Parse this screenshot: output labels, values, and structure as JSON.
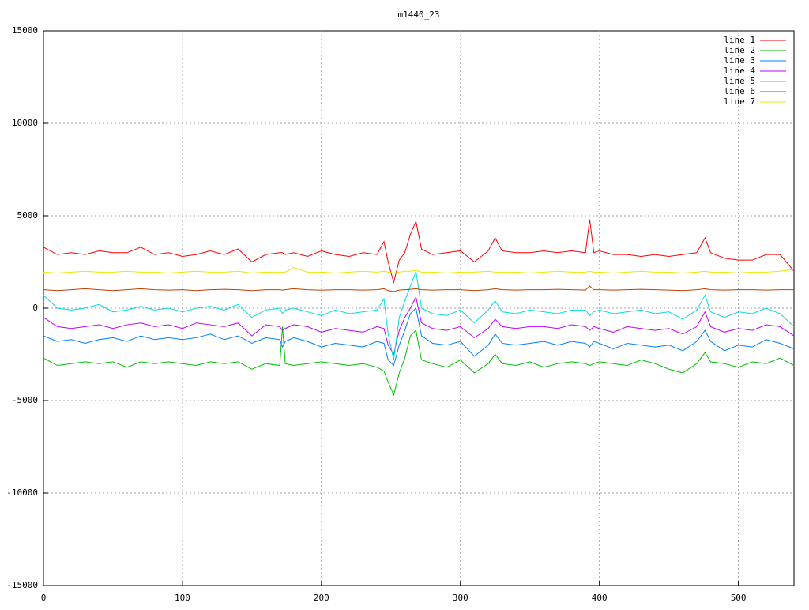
{
  "chart_data": {
    "type": "line",
    "title": "m1440_23",
    "x": [
      0,
      10,
      20,
      30,
      40,
      50,
      60,
      70,
      80,
      90,
      100,
      110,
      120,
      130,
      140,
      150,
      160,
      170,
      172,
      174,
      180,
      190,
      200,
      210,
      220,
      230,
      240,
      245,
      248,
      252,
      256,
      260,
      264,
      268,
      272,
      280,
      290,
      300,
      310,
      320,
      325,
      330,
      340,
      350,
      360,
      370,
      380,
      390,
      393,
      396,
      400,
      410,
      420,
      430,
      440,
      450,
      460,
      470,
      476,
      480,
      490,
      500,
      510,
      520,
      530,
      540
    ],
    "xlim": [
      0,
      540
    ],
    "xticks": [
      0,
      100,
      200,
      300,
      400,
      500
    ],
    "ylim": [
      -15000,
      15000
    ],
    "yticks": [
      -15000,
      -10000,
      -5000,
      0,
      5000,
      10000,
      15000
    ],
    "grid": true,
    "legend": "top-right",
    "series": [
      {
        "name": "line 1",
        "color": "#ff0000",
        "values": [
          3300,
          2900,
          3000,
          2900,
          3100,
          3000,
          3000,
          3300,
          2900,
          3000,
          2800,
          2900,
          3100,
          2900,
          3200,
          2500,
          2900,
          3000,
          3000,
          2900,
          3000,
          2800,
          3100,
          2900,
          2800,
          3000,
          2900,
          3600,
          2500,
          1400,
          2600,
          3000,
          4000,
          4700,
          3200,
          2900,
          3000,
          3100,
          2500,
          3100,
          3800,
          3100,
          3000,
          3000,
          3100,
          3000,
          3100,
          3000,
          4800,
          3000,
          3100,
          2900,
          2900,
          2800,
          2900,
          2800,
          2900,
          3000,
          3800,
          3000,
          2700,
          2600,
          2600,
          2900,
          2900,
          2000
        ]
      },
      {
        "name": "line 2",
        "color": "#00c000",
        "values": [
          -2700,
          -3100,
          -3000,
          -2900,
          -3000,
          -2900,
          -3200,
          -2900,
          -3000,
          -2900,
          -3000,
          -3100,
          -2900,
          -3000,
          -2900,
          -3300,
          -3000,
          -3100,
          -1000,
          -3000,
          -3100,
          -3000,
          -2900,
          -3000,
          -3100,
          -3000,
          -3200,
          -3400,
          -4000,
          -4700,
          -3500,
          -2700,
          -1500,
          -1200,
          -2800,
          -3000,
          -3200,
          -2800,
          -3500,
          -3000,
          -2500,
          -3000,
          -3100,
          -2900,
          -3200,
          -3000,
          -2900,
          -3000,
          -3100,
          -3000,
          -2900,
          -3000,
          -3100,
          -2800,
          -3000,
          -3300,
          -3500,
          -3000,
          -2400,
          -2900,
          -3000,
          -3200,
          -2900,
          -3000,
          -2700,
          -3100
        ]
      },
      {
        "name": "line 3",
        "color": "#0080ff",
        "values": [
          -1500,
          -1800,
          -1700,
          -1900,
          -1700,
          -1600,
          -1800,
          -1500,
          -1700,
          -1600,
          -1700,
          -1600,
          -1400,
          -1700,
          -1500,
          -1900,
          -1600,
          -1700,
          -2100,
          -1800,
          -1600,
          -1800,
          -2100,
          -1900,
          -2000,
          -2100,
          -1800,
          -1900,
          -2800,
          -3100,
          -2000,
          -1200,
          -300,
          0,
          -1500,
          -1900,
          -2000,
          -1800,
          -2600,
          -2000,
          -1400,
          -1900,
          -2000,
          -1900,
          -1800,
          -2000,
          -1800,
          -1900,
          -2100,
          -1800,
          -1900,
          -2200,
          -1900,
          -2000,
          -2100,
          -2000,
          -2300,
          -1800,
          -1200,
          -1800,
          -2300,
          -2000,
          -2100,
          -1700,
          -1900,
          -2200
        ]
      },
      {
        "name": "line 4",
        "color": "#c000ff",
        "values": [
          -500,
          -1000,
          -1100,
          -1000,
          -900,
          -1100,
          -900,
          -800,
          -1000,
          -900,
          -1100,
          -800,
          -900,
          -1000,
          -800,
          -1500,
          -900,
          -1000,
          -1200,
          -1100,
          -900,
          -1000,
          -1300,
          -1100,
          -1200,
          -1300,
          -1000,
          -1100,
          -2000,
          -2500,
          -1200,
          -500,
          0,
          600,
          -800,
          -1100,
          -1200,
          -1000,
          -1600,
          -1100,
          -600,
          -1000,
          -1100,
          -1000,
          -1000,
          -1100,
          -900,
          -1000,
          -1200,
          -1000,
          -1100,
          -1300,
          -1000,
          -1100,
          -1200,
          -1100,
          -1400,
          -1000,
          -200,
          -1000,
          -1300,
          -1100,
          -1200,
          -900,
          -1000,
          -1500
        ]
      },
      {
        "name": "line 5",
        "color": "#00dddd",
        "values": [
          700,
          0,
          -100,
          0,
          200,
          -200,
          -100,
          100,
          -100,
          0,
          -200,
          0,
          100,
          -100,
          200,
          -500,
          -100,
          0,
          -300,
          -100,
          0,
          -200,
          -400,
          -100,
          -300,
          -200,
          -100,
          500,
          -1400,
          -2800,
          -500,
          400,
          1200,
          2000,
          0,
          -300,
          -400,
          -100,
          -800,
          -100,
          400,
          -200,
          -300,
          -100,
          -200,
          -300,
          -100,
          -100,
          -400,
          -200,
          -100,
          -300,
          -200,
          -100,
          -300,
          -200,
          -600,
          -100,
          700,
          -200,
          -500,
          -200,
          -300,
          0,
          -300,
          -1000
        ]
      },
      {
        "name": "line 6",
        "color": "#c04000",
        "values": [
          1000,
          950,
          1000,
          1050,
          1000,
          950,
          1000,
          1050,
          1000,
          980,
          1000,
          950,
          1000,
          1020,
          1000,
          950,
          1000,
          1000,
          980,
          1000,
          1050,
          1000,
          970,
          1000,
          1000,
          980,
          1000,
          1050,
          950,
          900,
          980,
          1000,
          1020,
          1050,
          1000,
          980,
          1000,
          1000,
          950,
          1000,
          1050,
          1000,
          980,
          1000,
          1000,
          1020,
          1000,
          980,
          1200,
          1000,
          1000,
          980,
          1000,
          1020,
          1000,
          980,
          950,
          1000,
          1050,
          1000,
          980,
          1000,
          1000,
          980,
          1000,
          1000
        ]
      },
      {
        "name": "line 7",
        "color": "#e8e800",
        "values": [
          1950,
          1900,
          1950,
          2000,
          1950,
          1950,
          2000,
          1950,
          1950,
          1900,
          1950,
          2000,
          1950,
          1950,
          2000,
          1900,
          1950,
          1950,
          1950,
          1950,
          2200,
          1950,
          1950,
          1900,
          1950,
          2000,
          1950,
          2000,
          1950,
          1900,
          1950,
          2000,
          2000,
          2050,
          1950,
          1950,
          1900,
          1950,
          1950,
          2000,
          1950,
          1950,
          1950,
          1900,
          1950,
          2000,
          1950,
          1950,
          2000,
          1950,
          1950,
          1900,
          1950,
          2000,
          1950,
          1950,
          1900,
          1950,
          2000,
          1950,
          1950,
          1900,
          1950,
          1950,
          2000,
          2100
        ]
      }
    ]
  }
}
